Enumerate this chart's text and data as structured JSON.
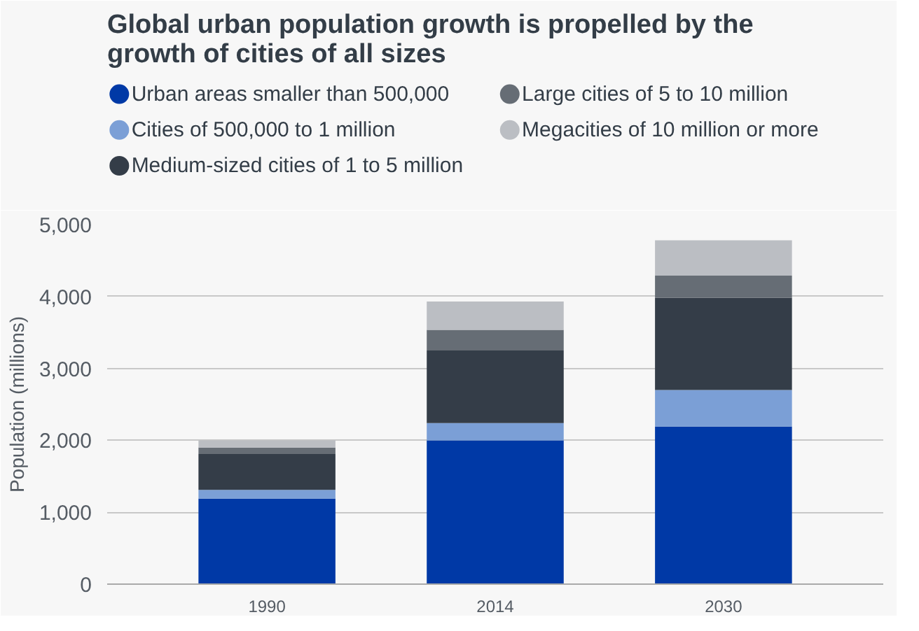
{
  "chart_data": {
    "type": "bar",
    "stacked": true,
    "title": "Global urban population growth is propelled by the\ngrowth of cities of all sizes",
    "ylabel": "Population (millions)",
    "categories": [
      "1990",
      "2014",
      "2030"
    ],
    "series": [
      {
        "name": "Urban areas smaller than 500,000",
        "color": "#0039a6",
        "values": [
          1190,
          2000,
          2190
        ]
      },
      {
        "name": "Cities of 500,000 to 1 million",
        "color": "#7b9fd6",
        "values": [
          120,
          240,
          510
        ]
      },
      {
        "name": "Medium-sized cities of 1 to 5 million",
        "color": "#343d48",
        "values": [
          500,
          1010,
          1280
        ]
      },
      {
        "name": "Large cities of 5 to 10 million",
        "color": "#666d75",
        "values": [
          90,
          285,
          310
        ]
      },
      {
        "name": "Megacities of 10 million or more",
        "color": "#bbbec3",
        "values": [
          100,
          395,
          490
        ]
      }
    ],
    "ylim": [
      0,
      5000
    ],
    "yticks": [
      {
        "value": 0,
        "label": "0"
      },
      {
        "value": 1000,
        "label": "1,000"
      },
      {
        "value": 2000,
        "label": "2,000"
      },
      {
        "value": 3000,
        "label": "3,000"
      },
      {
        "value": 4000,
        "label": "4,000"
      },
      {
        "value": 5000,
        "label": "5,000"
      }
    ],
    "grid": "y",
    "legend": "top"
  }
}
